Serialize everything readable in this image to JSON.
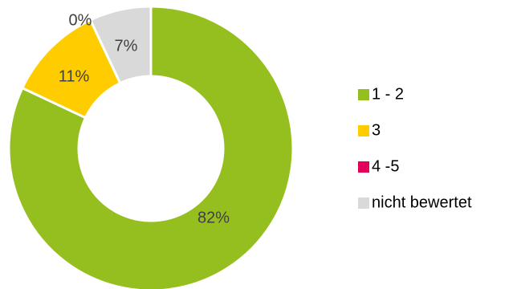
{
  "chart_data": {
    "type": "pie",
    "variant": "donut",
    "categories": [
      "1 - 2",
      "3",
      "4 -5",
      "nicht bewertet"
    ],
    "values": [
      82,
      11,
      0,
      7
    ],
    "data_labels": [
      "82%",
      "11%",
      "0%",
      "7%"
    ],
    "colors": [
      "#95BF1E",
      "#FFCC00",
      "#E2005A",
      "#D9D9D9"
    ],
    "legend_position": "right",
    "start_angle_deg": 0,
    "direction": "clockwise"
  }
}
